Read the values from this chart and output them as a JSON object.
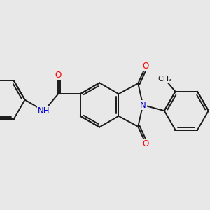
{
  "bg": "#e8e8e8",
  "bond_color": "#1a1a1a",
  "bond_lw": 1.4,
  "atom_colors": {
    "O": "#ff0000",
    "N": "#0000cc",
    "C": "#1a1a1a"
  },
  "fs": 8.5
}
